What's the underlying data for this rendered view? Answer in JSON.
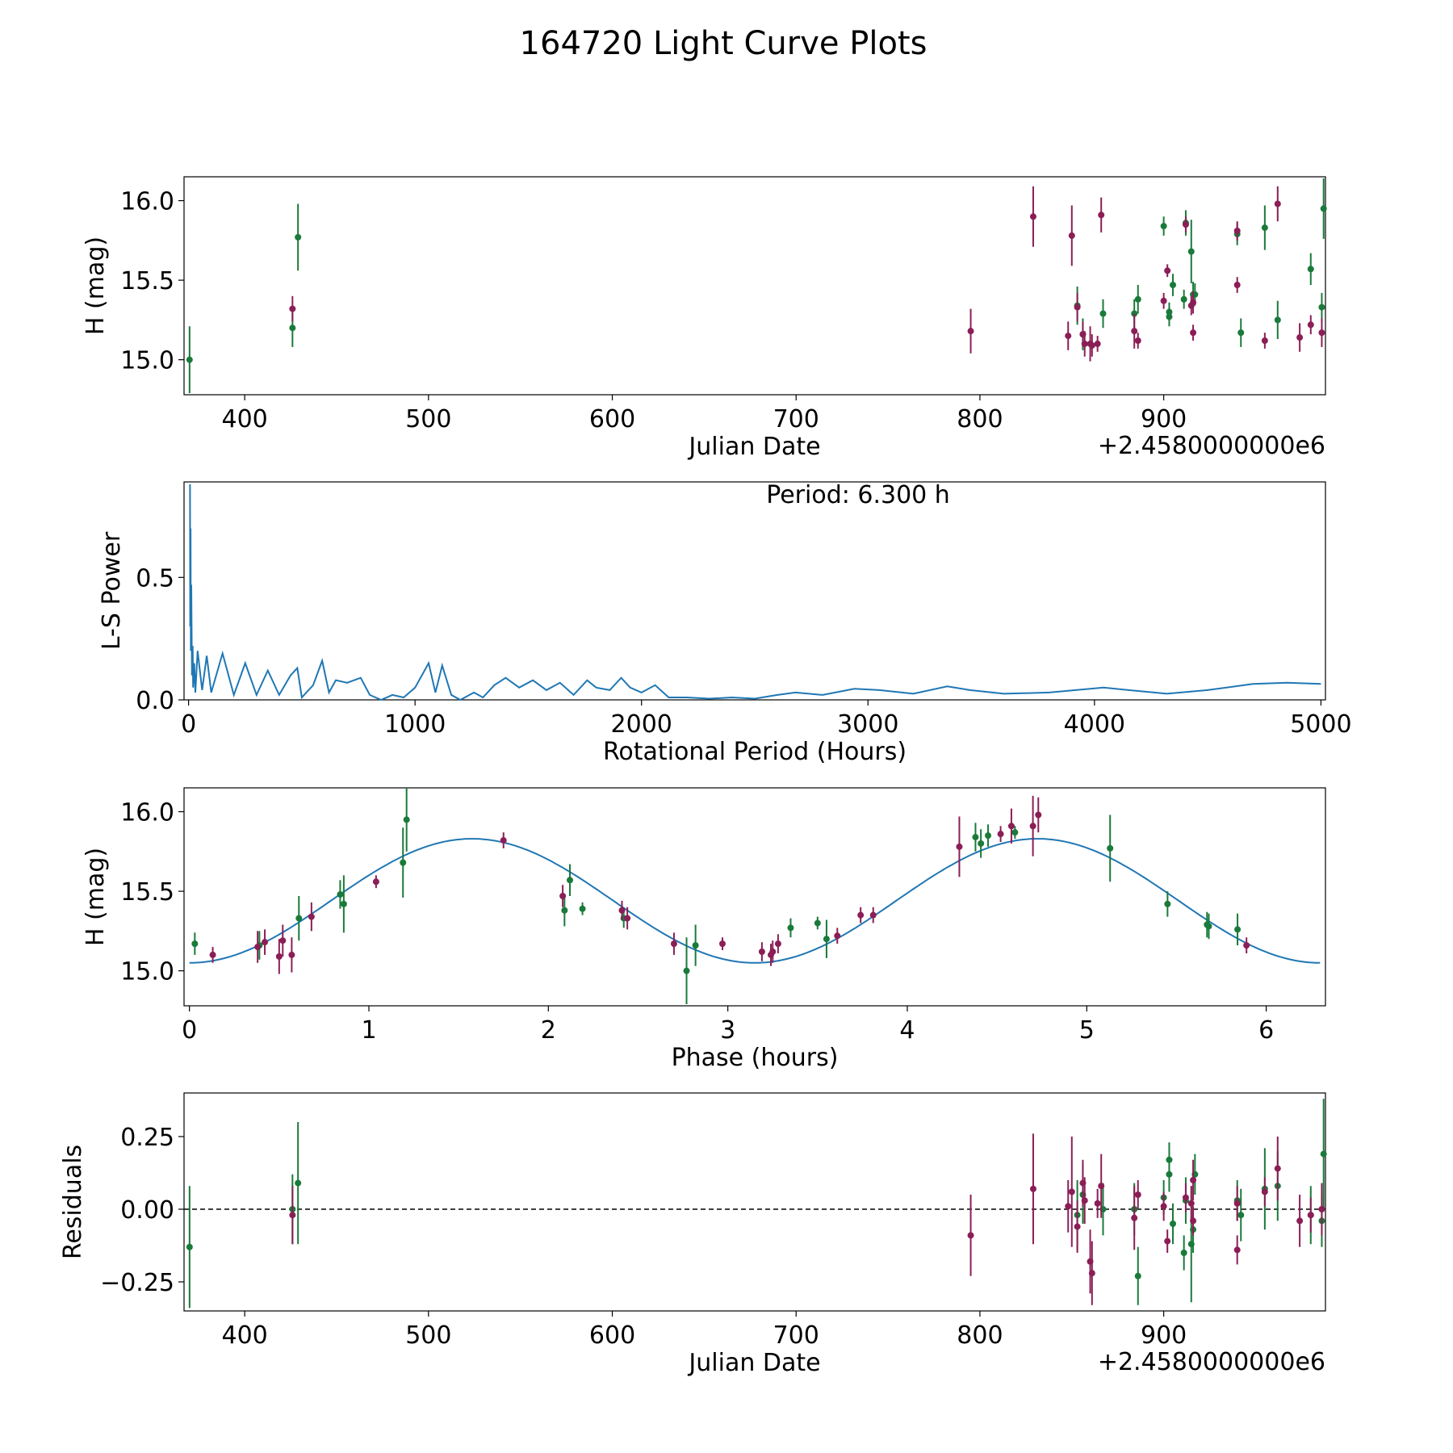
{
  "title": "164720 Light Curve Plots",
  "colors": {
    "green": "#1a7a3a",
    "maroon": "#8b1e56",
    "blue": "#1f77b4"
  },
  "chart_data": [
    {
      "type": "scatter",
      "name": "light-curve",
      "xlabel": "Julian Date",
      "ylabel": "H (mag)",
      "x_offset_label": "+2.4580000000e6",
      "xlim": [
        367,
        988
      ],
      "ylim": [
        14.78,
        16.15
      ],
      "xticks": [
        400,
        500,
        600,
        700,
        800,
        900
      ],
      "yticks": [
        15.0,
        15.5,
        16.0
      ],
      "series": [
        {
          "name": "filter-green",
          "color": "#1a7a3a",
          "points": [
            [
              370,
              15.0,
              0.21
            ],
            [
              426,
              15.2,
              0.12
            ],
            [
              429,
              15.77,
              0.21
            ],
            [
              853,
              15.34,
              0.12
            ],
            [
              856,
              15.16,
              0.1
            ],
            [
              867,
              15.29,
              0.09
            ],
            [
              884,
              15.29,
              0.09
            ],
            [
              886,
              15.38,
              0.09
            ],
            [
              900,
              15.84,
              0.06
            ],
            [
              903,
              15.3,
              0.06
            ],
            [
              903,
              15.27,
              0.06
            ],
            [
              905,
              15.47,
              0.07
            ],
            [
              911,
              15.38,
              0.06
            ],
            [
              912,
              15.86,
              0.08
            ],
            [
              915,
              15.68,
              0.2
            ],
            [
              916,
              15.41,
              0.08
            ],
            [
              917,
              15.41,
              0.07
            ],
            [
              940,
              15.79,
              0.07
            ],
            [
              942,
              15.17,
              0.09
            ],
            [
              955,
              15.83,
              0.14
            ],
            [
              962,
              15.25,
              0.12
            ],
            [
              980,
              15.57,
              0.1
            ],
            [
              986,
              15.33,
              0.09
            ],
            [
              987,
              15.95,
              0.19
            ]
          ]
        },
        {
          "name": "filter-maroon",
          "color": "#8b1e56",
          "points": [
            [
              426,
              15.32,
              0.08
            ],
            [
              795,
              15.18,
              0.14
            ],
            [
              829,
              15.9,
              0.19
            ],
            [
              848,
              15.15,
              0.09
            ],
            [
              850,
              15.78,
              0.19
            ],
            [
              853,
              15.33,
              0.09
            ],
            [
              856,
              15.16,
              0.08
            ],
            [
              857,
              15.1,
              0.08
            ],
            [
              860,
              15.1,
              0.11
            ],
            [
              861,
              15.09,
              0.07
            ],
            [
              864,
              15.1,
              0.05
            ],
            [
              866,
              15.91,
              0.11
            ],
            [
              884,
              15.18,
              0.11
            ],
            [
              886,
              15.12,
              0.05
            ],
            [
              900,
              15.37,
              0.05
            ],
            [
              902,
              15.56,
              0.04
            ],
            [
              912,
              15.85,
              0.05
            ],
            [
              915,
              15.34,
              0.06
            ],
            [
              916,
              15.36,
              0.07
            ],
            [
              916,
              15.17,
              0.05
            ],
            [
              940,
              15.47,
              0.05
            ],
            [
              940,
              15.81,
              0.06
            ],
            [
              955,
              15.12,
              0.05
            ],
            [
              962,
              15.98,
              0.11
            ],
            [
              974,
              15.14,
              0.09
            ],
            [
              980,
              15.22,
              0.06
            ],
            [
              986,
              15.17,
              0.09
            ]
          ]
        }
      ]
    },
    {
      "type": "line",
      "name": "lomb-scargle-periodogram",
      "xlabel": "Rotational Period (Hours)",
      "ylabel": "L-S Power",
      "annotation": "Period: 6.300 h",
      "xlim": [
        -20,
        5020
      ],
      "ylim": [
        0.0,
        0.89
      ],
      "xticks": [
        0,
        1000,
        2000,
        3000,
        4000,
        5000
      ],
      "yticks": [
        0.0,
        0.5
      ],
      "series": [
        {
          "name": "power",
          "color": "#1f77b4",
          "x": [
            6.3,
            7,
            9,
            10,
            12,
            15,
            18,
            20,
            25,
            30,
            40,
            60,
            80,
            100,
            150,
            200,
            250,
            300,
            350,
            400,
            450,
            480,
            500,
            550,
            590,
            620,
            650,
            700,
            760,
            800,
            850,
            900,
            950,
            1000,
            1060,
            1090,
            1120,
            1160,
            1200,
            1260,
            1300,
            1350,
            1400,
            1460,
            1520,
            1580,
            1640,
            1700,
            1760,
            1800,
            1860,
            1910,
            1950,
            2000,
            2060,
            2120,
            2200,
            2300,
            2400,
            2500,
            2600,
            2680,
            2800,
            2940,
            3050,
            3200,
            3350,
            3450,
            3600,
            3800,
            4040,
            4150,
            4320,
            4500,
            4700,
            4850,
            5000
          ],
          "y": [
            0.88,
            0.3,
            0.7,
            0.2,
            0.47,
            0.1,
            0.22,
            0.05,
            0.15,
            0.03,
            0.2,
            0.04,
            0.18,
            0.03,
            0.19,
            0.02,
            0.15,
            0.02,
            0.12,
            0.02,
            0.1,
            0.13,
            0.01,
            0.06,
            0.16,
            0.03,
            0.08,
            0.07,
            0.09,
            0.02,
            0.0,
            0.02,
            0.01,
            0.05,
            0.15,
            0.03,
            0.14,
            0.02,
            0.0,
            0.03,
            0.01,
            0.06,
            0.09,
            0.05,
            0.08,
            0.04,
            0.07,
            0.02,
            0.08,
            0.05,
            0.04,
            0.09,
            0.05,
            0.03,
            0.06,
            0.01,
            0.01,
            0.005,
            0.01,
            0.005,
            0.02,
            0.03,
            0.02,
            0.045,
            0.04,
            0.025,
            0.055,
            0.04,
            0.025,
            0.03,
            0.05,
            0.04,
            0.025,
            0.04,
            0.065,
            0.07,
            0.065
          ]
        }
      ]
    },
    {
      "type": "scatter",
      "name": "phased-light-curve",
      "xlabel": "Phase (hours)",
      "ylabel": "H (mag)",
      "xlim": [
        -0.03,
        6.33
      ],
      "ylim": [
        14.78,
        16.15
      ],
      "xticks": [
        0,
        1,
        2,
        3,
        4,
        5,
        6
      ],
      "yticks": [
        15.0,
        15.5,
        16.0
      ],
      "model": {
        "color": "#1f77b4",
        "period_hours": 6.3,
        "mean": 15.44,
        "amplitude": 0.39,
        "phase_min_hours": 0.0
      },
      "series": [
        {
          "name": "filter-green",
          "color": "#1a7a3a",
          "points": [
            [
              0.03,
              15.17,
              0.07
            ],
            [
              0.39,
              15.16,
              0.09
            ],
            [
              0.61,
              15.33,
              0.14
            ],
            [
              0.84,
              15.48,
              0.09
            ],
            [
              0.86,
              15.42,
              0.18
            ],
            [
              1.19,
              15.68,
              0.22
            ],
            [
              1.21,
              15.95,
              0.2
            ],
            [
              2.09,
              15.38,
              0.1
            ],
            [
              2.12,
              15.57,
              0.1
            ],
            [
              2.19,
              15.39,
              0.04
            ],
            [
              2.42,
              15.33,
              0.06
            ],
            [
              2.77,
              15.0,
              0.21
            ],
            [
              2.82,
              15.16,
              0.13
            ],
            [
              3.35,
              15.27,
              0.06
            ],
            [
              3.5,
              15.3,
              0.04
            ],
            [
              3.55,
              15.2,
              0.12
            ],
            [
              4.38,
              15.84,
              0.09
            ],
            [
              4.41,
              15.8,
              0.09
            ],
            [
              4.45,
              15.85,
              0.07
            ],
            [
              4.6,
              15.87,
              0.04
            ],
            [
              5.13,
              15.77,
              0.21
            ],
            [
              5.45,
              15.42,
              0.08
            ],
            [
              5.67,
              15.29,
              0.08
            ],
            [
              5.68,
              15.28,
              0.08
            ],
            [
              5.84,
              15.26,
              0.1
            ]
          ]
        },
        {
          "name": "filter-maroon",
          "color": "#8b1e56",
          "points": [
            [
              0.13,
              15.1,
              0.05
            ],
            [
              0.38,
              15.15,
              0.1
            ],
            [
              0.42,
              15.18,
              0.08
            ],
            [
              0.5,
              15.09,
              0.11
            ],
            [
              0.52,
              15.19,
              0.1
            ],
            [
              0.57,
              15.1,
              0.11
            ],
            [
              0.68,
              15.34,
              0.09
            ],
            [
              1.04,
              15.56,
              0.04
            ],
            [
              1.75,
              15.82,
              0.05
            ],
            [
              2.08,
              15.47,
              0.07
            ],
            [
              2.41,
              15.38,
              0.06
            ],
            [
              2.44,
              15.33,
              0.07
            ],
            [
              2.7,
              15.17,
              0.07
            ],
            [
              2.97,
              15.17,
              0.04
            ],
            [
              3.19,
              15.12,
              0.06
            ],
            [
              3.24,
              15.1,
              0.07
            ],
            [
              3.25,
              15.12,
              0.07
            ],
            [
              3.28,
              15.17,
              0.06
            ],
            [
              3.61,
              15.22,
              0.05
            ],
            [
              3.74,
              15.35,
              0.05
            ],
            [
              3.81,
              15.35,
              0.05
            ],
            [
              4.29,
              15.78,
              0.19
            ],
            [
              4.52,
              15.86,
              0.05
            ],
            [
              4.58,
              15.91,
              0.11
            ],
            [
              4.7,
              15.91,
              0.19
            ],
            [
              4.73,
              15.98,
              0.11
            ],
            [
              5.89,
              15.16,
              0.05
            ]
          ]
        }
      ]
    },
    {
      "type": "scatter",
      "name": "residuals",
      "xlabel": "Julian Date",
      "ylabel": "Residuals",
      "x_offset_label": "+2.4580000000e6",
      "xlim": [
        367,
        988
      ],
      "ylim": [
        -0.35,
        0.4
      ],
      "xticks": [
        400,
        500,
        600,
        700,
        800,
        900
      ],
      "yticks": [
        -0.25,
        0.0,
        0.25
      ],
      "yticklabels": [
        "−0.25",
        "0.00",
        "0.25"
      ],
      "reference_line": 0.0,
      "series": [
        {
          "name": "filter-green",
          "color": "#1a7a3a",
          "points": [
            [
              370,
              -0.13,
              0.21
            ],
            [
              426,
              0.0,
              0.12
            ],
            [
              429,
              0.09,
              0.21
            ],
            [
              853,
              -0.02,
              0.12
            ],
            [
              856,
              0.05,
              0.1
            ],
            [
              867,
              0.0,
              0.09
            ],
            [
              884,
              0.0,
              0.09
            ],
            [
              886,
              -0.23,
              0.1
            ],
            [
              900,
              0.04,
              0.06
            ],
            [
              903,
              0.17,
              0.06
            ],
            [
              903,
              0.12,
              0.06
            ],
            [
              905,
              -0.05,
              0.07
            ],
            [
              911,
              -0.15,
              0.06
            ],
            [
              912,
              0.03,
              0.08
            ],
            [
              915,
              -0.12,
              0.2
            ],
            [
              916,
              -0.07,
              0.08
            ],
            [
              917,
              0.12,
              0.07
            ],
            [
              940,
              0.03,
              0.07
            ],
            [
              942,
              -0.02,
              0.09
            ],
            [
              955,
              0.07,
              0.14
            ],
            [
              962,
              0.08,
              0.12
            ],
            [
              980,
              -0.02,
              0.1
            ],
            [
              986,
              -0.04,
              0.09
            ],
            [
              987,
              0.19,
              0.19
            ]
          ]
        },
        {
          "name": "filter-maroon",
          "color": "#8b1e56",
          "points": [
            [
              426,
              -0.02,
              0.1
            ],
            [
              795,
              -0.09,
              0.14
            ],
            [
              829,
              0.07,
              0.19
            ],
            [
              848,
              0.01,
              0.09
            ],
            [
              850,
              0.06,
              0.19
            ],
            [
              853,
              -0.06,
              0.09
            ],
            [
              856,
              0.09,
              0.08
            ],
            [
              857,
              0.03,
              0.08
            ],
            [
              860,
              -0.18,
              0.11
            ],
            [
              861,
              -0.22,
              0.11
            ],
            [
              864,
              0.02,
              0.05
            ],
            [
              866,
              0.08,
              0.11
            ],
            [
              884,
              -0.03,
              0.11
            ],
            [
              886,
              0.05,
              0.05
            ],
            [
              900,
              0.01,
              0.05
            ],
            [
              902,
              -0.11,
              0.04
            ],
            [
              912,
              0.04,
              0.05
            ],
            [
              915,
              0.02,
              0.06
            ],
            [
              916,
              0.1,
              0.07
            ],
            [
              916,
              -0.04,
              0.05
            ],
            [
              940,
              -0.14,
              0.05
            ],
            [
              940,
              0.02,
              0.06
            ],
            [
              955,
              0.06,
              0.05
            ],
            [
              962,
              0.14,
              0.11
            ],
            [
              974,
              -0.04,
              0.09
            ],
            [
              980,
              -0.02,
              0.06
            ],
            [
              986,
              0.0,
              0.09
            ]
          ]
        }
      ]
    }
  ]
}
